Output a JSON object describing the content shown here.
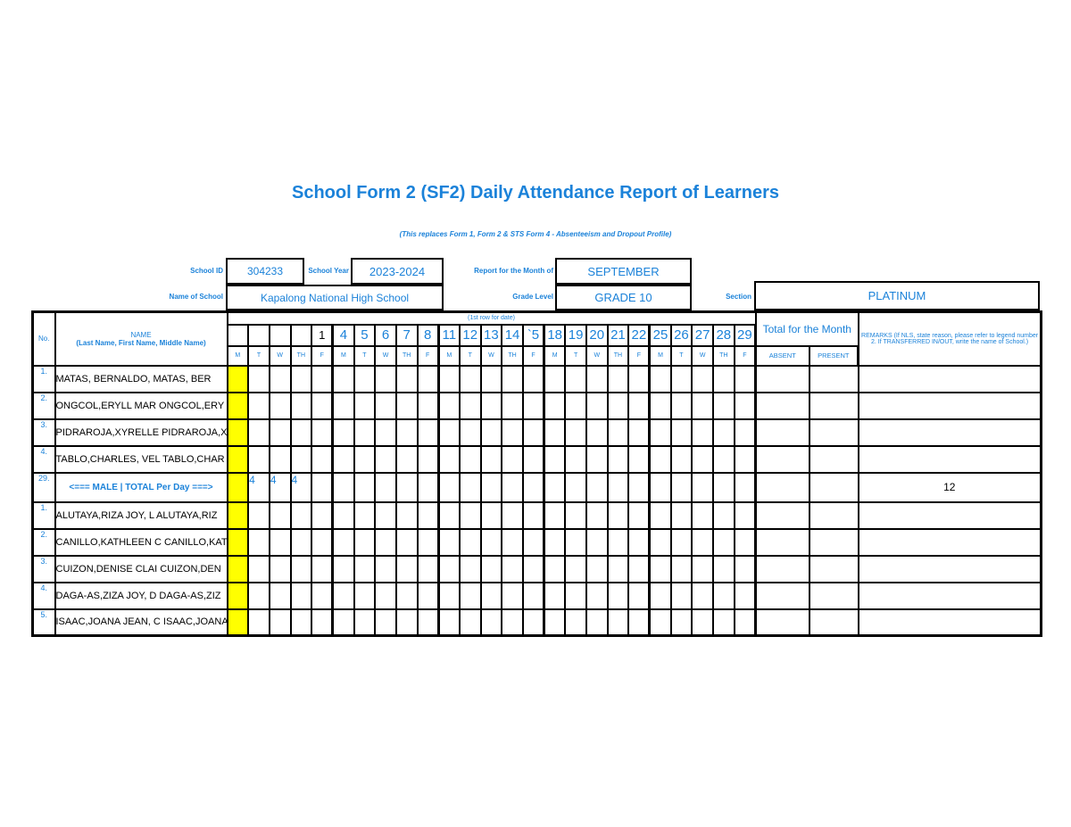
{
  "colors": {
    "accent_blue": "#1b82d9",
    "highlight_yellow": "#ffff00",
    "grid_black": "#000000"
  },
  "title": "School Form 2 (SF2) Daily Attendance Report of Learners",
  "subtitle": "(This replaces Form 1, Form 2 & STS Form 4 -  Absenteeism and Dropout Profile)",
  "form": {
    "school_id_label": "School ID",
    "school_id": "304233",
    "school_year_label": "School Year",
    "school_year": "2023-2024",
    "month_label": "Report for the Month of",
    "month": "SEPTEMBER",
    "school_name_label": "Name of School",
    "school_name": "Kapalong National High School",
    "grade_label": "Grade Level",
    "grade": "GRADE 10",
    "section_label": "Section",
    "section": "PLATINUM"
  },
  "table": {
    "no_header": "No.",
    "name_header_line1": "NAME",
    "name_header_line2": "(Last Name, First Name, Middle Name)",
    "date_row_caption": "(1st row for date)",
    "dates": [
      "",
      "",
      "",
      "",
      "1",
      "4",
      "5",
      "6",
      "7",
      "8",
      "11",
      "12",
      "13",
      "14",
      "`5",
      "18",
      "19",
      "20",
      "21",
      "22",
      "25",
      "26",
      "27",
      "28",
      "29"
    ],
    "black_date_index": 4,
    "day_letters": [
      "M",
      "T",
      "W",
      "TH",
      "F",
      "M",
      "T",
      "W",
      "TH",
      "F",
      "M",
      "T",
      "W",
      "TH",
      "F",
      "M",
      "T",
      "W",
      "TH",
      "F",
      "M",
      "T",
      "W",
      "TH",
      "F"
    ],
    "total_header": "Total for the Month",
    "absent_header": "ABSENT",
    "present_header": "PRESENT",
    "remarks_header": "REMARKS (If NLS, state reason, please refer to legend number 2. If TRANSFERRED IN/OUT, write the name of School.)",
    "rows": [
      {
        "no": "1.",
        "type": "student",
        "name": "MATAS, BERNALDO,  MATAS, BER",
        "marks": [
          "",
          "",
          "",
          "",
          "",
          "",
          "",
          "",
          "",
          "",
          "",
          "",
          "",
          "",
          "",
          "",
          "",
          "",
          "",
          "",
          "",
          "",
          "",
          "",
          ""
        ],
        "absent": "",
        "present": "",
        "remarks": ""
      },
      {
        "no": "2.",
        "type": "student",
        "name": "ONGCOL,ERYLL MAR ONGCOL,ERY",
        "marks": [
          "",
          "",
          "",
          "",
          "",
          "",
          "",
          "",
          "",
          "",
          "",
          "",
          "",
          "",
          "",
          "",
          "",
          "",
          "",
          "",
          "",
          "",
          "",
          "",
          ""
        ],
        "absent": "",
        "present": "",
        "remarks": ""
      },
      {
        "no": "3.",
        "type": "student",
        "name": "PIDRAROJA,XYRELLE PIDRAROJA,X",
        "marks": [
          "",
          "",
          "",
          "",
          "",
          "",
          "",
          "",
          "",
          "",
          "",
          "",
          "",
          "",
          "",
          "",
          "",
          "",
          "",
          "",
          "",
          "",
          "",
          "",
          ""
        ],
        "absent": "",
        "present": "",
        "remarks": ""
      },
      {
        "no": "4.",
        "type": "student",
        "name": "TABLO,CHARLES, VEL TABLO,CHAR",
        "marks": [
          "",
          "",
          "",
          "",
          "",
          "",
          "",
          "",
          "",
          "",
          "",
          "",
          "",
          "",
          "",
          "",
          "",
          "",
          "",
          "",
          "",
          "",
          "",
          "",
          ""
        ],
        "absent": "",
        "present": "",
        "remarks": ""
      },
      {
        "no": "29.",
        "type": "total",
        "name": "<=== MALE | TOTAL Per Day ===>",
        "marks": [
          "",
          "4",
          "4",
          "4",
          "",
          "",
          "",
          "",
          "",
          "",
          "",
          "",
          "",
          "",
          "",
          "",
          "",
          "",
          "",
          "",
          "",
          "",
          "",
          "",
          ""
        ],
        "absent": "",
        "present": "",
        "remarks": "12"
      },
      {
        "no": "1.",
        "type": "student",
        "name": "ALUTAYA,RIZA JOY, L ALUTAYA,RIZ",
        "marks": [
          "",
          "",
          "",
          "",
          "",
          "",
          "",
          "",
          "",
          "",
          "",
          "",
          "",
          "",
          "",
          "",
          "",
          "",
          "",
          "",
          "",
          "",
          "",
          "",
          ""
        ],
        "absent": "",
        "present": "",
        "remarks": ""
      },
      {
        "no": "2.",
        "type": "student",
        "name": "CANILLO,KATHLEEN C CANILLO,KAT",
        "marks": [
          "",
          "",
          "",
          "",
          "",
          "",
          "",
          "",
          "",
          "",
          "",
          "",
          "",
          "",
          "",
          "",
          "",
          "",
          "",
          "",
          "",
          "",
          "",
          "",
          ""
        ],
        "absent": "",
        "present": "",
        "remarks": ""
      },
      {
        "no": "3.",
        "type": "student",
        "name": "CUIZON,DENISE CLAI CUIZON,DEN",
        "marks": [
          "",
          "",
          "",
          "",
          "",
          "",
          "",
          "",
          "",
          "",
          "",
          "",
          "",
          "",
          "",
          "",
          "",
          "",
          "",
          "",
          "",
          "",
          "",
          "",
          ""
        ],
        "absent": "",
        "present": "",
        "remarks": ""
      },
      {
        "no": "4.",
        "type": "student",
        "name": "DAGA-AS,ZIZA JOY, D DAGA-AS,ZIZ",
        "marks": [
          "",
          "",
          "",
          "",
          "",
          "",
          "",
          "",
          "",
          "",
          "",
          "",
          "",
          "",
          "",
          "",
          "",
          "",
          "",
          "",
          "",
          "",
          "",
          "",
          ""
        ],
        "absent": "",
        "present": "",
        "remarks": ""
      },
      {
        "no": "5.",
        "type": "student",
        "name": "ISAAC,JOANA JEAN, C ISAAC,JOANA",
        "marks": [
          "",
          "",
          "",
          "",
          "",
          "",
          "",
          "",
          "",
          "",
          "",
          "",
          "",
          "",
          "",
          "",
          "",
          "",
          "",
          "",
          "",
          "",
          "",
          "",
          ""
        ],
        "absent": "",
        "present": "",
        "remarks": ""
      }
    ]
  }
}
